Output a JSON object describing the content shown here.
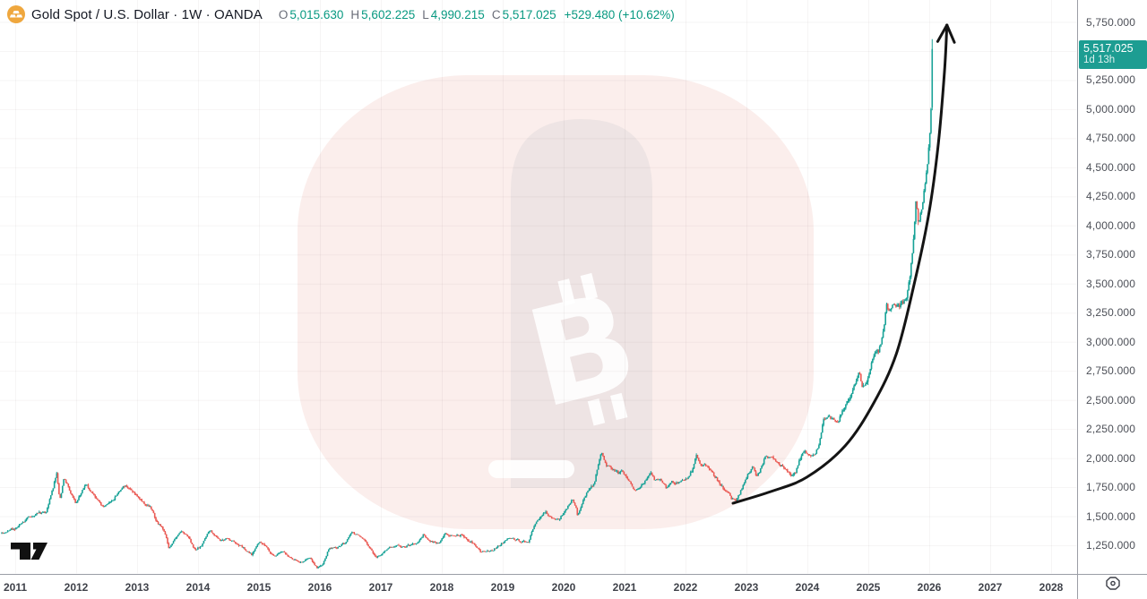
{
  "header": {
    "symbol_title": "Gold Spot / U.S. Dollar · 1W · OANDA",
    "symbol_icon": "gold-coin-icon",
    "ohlc": [
      {
        "label": "O",
        "value": "5,015.630"
      },
      {
        "label": "H",
        "value": "5,602.225"
      },
      {
        "label": "L",
        "value": "4,990.215"
      },
      {
        "label": "C",
        "value": "5,517.025"
      }
    ],
    "change": "+529.480 (+10.62%)"
  },
  "last_price_badge": {
    "price": "5,517.025",
    "countdown": "1d 13h"
  },
  "colors": {
    "up": "#18a297",
    "down": "#ea5a54",
    "header_value": "#089981",
    "badge_bg": "#1d9d92",
    "annotation": "#141414",
    "grid": "rgba(70,50,50,0.05)",
    "axis_line": "#9b9ea6",
    "watermark_pink": "#fbeeec",
    "watermark_gray": "rgba(175,180,186,0.16)",
    "watermark_white": "rgba(255,255,255,0.9)"
  },
  "chart_data": {
    "type": "candlestick",
    "title": "Gold Spot / U.S. Dollar",
    "interval": "1W",
    "exchange": "OANDA",
    "x_axis": {
      "years": [
        2011,
        2012,
        2013,
        2014,
        2015,
        2016,
        2017,
        2018,
        2019,
        2020,
        2021,
        2022,
        2023,
        2024,
        2025,
        2026,
        2027,
        2028
      ]
    },
    "y_axis": {
      "grid_min": 1250,
      "grid_max": 5750,
      "step": 250,
      "ticks": [
        {
          "value": 5750,
          "label": "5,750.000"
        },
        {
          "value": 5250,
          "label": "5,250.000"
        },
        {
          "value": 5000,
          "label": "5,000.000"
        },
        {
          "value": 4750,
          "label": "4,750.000"
        },
        {
          "value": 4500,
          "label": "4,500.000"
        },
        {
          "value": 4250,
          "label": "4,250.000"
        },
        {
          "value": 4000,
          "label": "4,000.000"
        },
        {
          "value": 3750,
          "label": "3,750.000"
        },
        {
          "value": 3500,
          "label": "3,500.000"
        },
        {
          "value": 3250,
          "label": "3,250.000"
        },
        {
          "value": 3000,
          "label": "3,000.000"
        },
        {
          "value": 2750,
          "label": "2,750.000"
        },
        {
          "value": 2500,
          "label": "2,500.000"
        },
        {
          "value": 2250,
          "label": "2,250.000"
        },
        {
          "value": 2000,
          "label": "2,000.000"
        },
        {
          "value": 1750,
          "label": "1,750.000"
        },
        {
          "value": 1500,
          "label": "1,500.000"
        },
        {
          "value": 1250,
          "label": "1,250.000"
        }
      ]
    },
    "data_range_years": [
      2010.78,
      2026.06
    ],
    "series_anchors": [
      [
        2010.78,
        1352
      ],
      [
        2011.0,
        1395
      ],
      [
        2011.25,
        1505
      ],
      [
        2011.5,
        1530
      ],
      [
        2011.62,
        1740
      ],
      [
        2011.68,
        1880
      ],
      [
        2011.73,
        1650
      ],
      [
        2011.8,
        1820
      ],
      [
        2011.88,
        1745
      ],
      [
        2012.0,
        1610
      ],
      [
        2012.1,
        1730
      ],
      [
        2012.18,
        1770
      ],
      [
        2012.32,
        1650
      ],
      [
        2012.45,
        1570
      ],
      [
        2012.58,
        1620
      ],
      [
        2012.78,
        1770
      ],
      [
        2012.9,
        1720
      ],
      [
        2013.0,
        1665
      ],
      [
        2013.1,
        1610
      ],
      [
        2013.22,
        1580
      ],
      [
        2013.3,
        1480
      ],
      [
        2013.45,
        1370
      ],
      [
        2013.52,
        1230
      ],
      [
        2013.63,
        1320
      ],
      [
        2013.72,
        1390
      ],
      [
        2013.85,
        1310
      ],
      [
        2013.95,
        1210
      ],
      [
        2014.05,
        1250
      ],
      [
        2014.2,
        1380
      ],
      [
        2014.35,
        1290
      ],
      [
        2014.5,
        1310
      ],
      [
        2014.62,
        1280
      ],
      [
        2014.78,
        1210
      ],
      [
        2014.88,
        1170
      ],
      [
        2015.02,
        1280
      ],
      [
        2015.15,
        1210
      ],
      [
        2015.25,
        1160
      ],
      [
        2015.38,
        1200
      ],
      [
        2015.55,
        1130
      ],
      [
        2015.7,
        1100
      ],
      [
        2015.85,
        1140
      ],
      [
        2015.95,
        1060
      ],
      [
        2016.05,
        1090
      ],
      [
        2016.15,
        1230
      ],
      [
        2016.3,
        1230
      ],
      [
        2016.42,
        1270
      ],
      [
        2016.52,
        1360
      ],
      [
        2016.65,
        1330
      ],
      [
        2016.78,
        1260
      ],
      [
        2016.92,
        1140
      ],
      [
        2017.0,
        1160
      ],
      [
        2017.12,
        1230
      ],
      [
        2017.25,
        1250
      ],
      [
        2017.35,
        1230
      ],
      [
        2017.5,
        1250
      ],
      [
        2017.62,
        1290
      ],
      [
        2017.7,
        1340
      ],
      [
        2017.8,
        1290
      ],
      [
        2017.95,
        1270
      ],
      [
        2018.05,
        1350
      ],
      [
        2018.2,
        1330
      ],
      [
        2018.32,
        1340
      ],
      [
        2018.45,
        1290
      ],
      [
        2018.55,
        1250
      ],
      [
        2018.65,
        1190
      ],
      [
        2018.78,
        1200
      ],
      [
        2018.9,
        1230
      ],
      [
        2019.05,
        1290
      ],
      [
        2019.15,
        1310
      ],
      [
        2019.3,
        1280
      ],
      [
        2019.42,
        1290
      ],
      [
        2019.52,
        1410
      ],
      [
        2019.62,
        1500
      ],
      [
        2019.7,
        1530
      ],
      [
        2019.8,
        1480
      ],
      [
        2019.92,
        1470
      ],
      [
        2020.05,
        1570
      ],
      [
        2020.14,
        1650
      ],
      [
        2020.2,
        1580
      ],
      [
        2020.23,
        1500
      ],
      [
        2020.3,
        1620
      ],
      [
        2020.42,
        1730
      ],
      [
        2020.5,
        1770
      ],
      [
        2020.57,
        1950
      ],
      [
        2020.62,
        2050
      ],
      [
        2020.7,
        1940
      ],
      [
        2020.8,
        1900
      ],
      [
        2020.9,
        1870
      ],
      [
        2020.97,
        1890
      ],
      [
        2021.05,
        1840
      ],
      [
        2021.15,
        1730
      ],
      [
        2021.22,
        1740
      ],
      [
        2021.32,
        1780
      ],
      [
        2021.42,
        1890
      ],
      [
        2021.5,
        1800
      ],
      [
        2021.6,
        1810
      ],
      [
        2021.68,
        1750
      ],
      [
        2021.78,
        1790
      ],
      [
        2021.88,
        1790
      ],
      [
        2021.95,
        1800
      ],
      [
        2022.05,
        1840
      ],
      [
        2022.12,
        1900
      ],
      [
        2022.18,
        2030
      ],
      [
        2022.25,
        1950
      ],
      [
        2022.33,
        1940
      ],
      [
        2022.42,
        1880
      ],
      [
        2022.5,
        1830
      ],
      [
        2022.58,
        1750
      ],
      [
        2022.68,
        1720
      ],
      [
        2022.76,
        1650
      ],
      [
        2022.82,
        1640
      ],
      [
        2022.88,
        1680
      ],
      [
        2022.95,
        1770
      ],
      [
        2023.02,
        1870
      ],
      [
        2023.1,
        1920
      ],
      [
        2023.17,
        1840
      ],
      [
        2023.25,
        1920
      ],
      [
        2023.3,
        2000
      ],
      [
        2023.4,
        2010
      ],
      [
        2023.5,
        1950
      ],
      [
        2023.57,
        1930
      ],
      [
        2023.65,
        1910
      ],
      [
        2023.73,
        1840
      ],
      [
        2023.8,
        1870
      ],
      [
        2023.88,
        1990
      ],
      [
        2023.95,
        2050
      ],
      [
        2024.02,
        2030
      ],
      [
        2024.1,
        2020
      ],
      [
        2024.18,
        2100
      ],
      [
        2024.27,
        2330
      ],
      [
        2024.35,
        2370
      ],
      [
        2024.42,
        2330
      ],
      [
        2024.5,
        2320
      ],
      [
        2024.57,
        2390
      ],
      [
        2024.65,
        2470
      ],
      [
        2024.72,
        2520
      ],
      [
        2024.8,
        2660
      ],
      [
        2024.85,
        2740
      ],
      [
        2024.9,
        2620
      ],
      [
        2024.97,
        2630
      ],
      [
        2025.03,
        2750
      ],
      [
        2025.1,
        2900
      ],
      [
        2025.17,
        2920
      ],
      [
        2025.25,
        3080
      ],
      [
        2025.3,
        3330
      ],
      [
        2025.35,
        3240
      ],
      [
        2025.42,
        3320
      ],
      [
        2025.5,
        3290
      ],
      [
        2025.55,
        3350
      ],
      [
        2025.62,
        3340
      ],
      [
        2025.68,
        3560
      ],
      [
        2025.73,
        3780
      ],
      [
        2025.78,
        4200
      ],
      [
        2025.82,
        4050
      ],
      [
        2025.86,
        4100
      ],
      [
        2025.9,
        4250
      ],
      [
        2025.94,
        4380
      ],
      [
        2025.98,
        4550
      ],
      [
        2026.02,
        4900
      ],
      [
        2026.06,
        5517
      ]
    ],
    "last_candle": {
      "open": 5015.63,
      "high": 5602.225,
      "low": 4990.215,
      "close": 5517.025
    },
    "annotation_arrow": {
      "type": "curved-arrow",
      "points": [
        [
          2022.78,
          1612
        ],
        [
          2023.4,
          1712
        ],
        [
          2023.99,
          1835
        ],
        [
          2024.62,
          2105
        ],
        [
          2025.09,
          2474
        ],
        [
          2025.46,
          2897
        ],
        [
          2025.75,
          3490
        ],
        [
          2025.99,
          4091
        ],
        [
          2026.15,
          4707
        ],
        [
          2026.25,
          5323
        ],
        [
          2026.29,
          5723
        ]
      ]
    },
    "watermark": "bitcoin-logo"
  },
  "footer": {
    "logo": "tradingview-logo"
  },
  "price_axis": {
    "corner_icon": "eye-icon"
  }
}
